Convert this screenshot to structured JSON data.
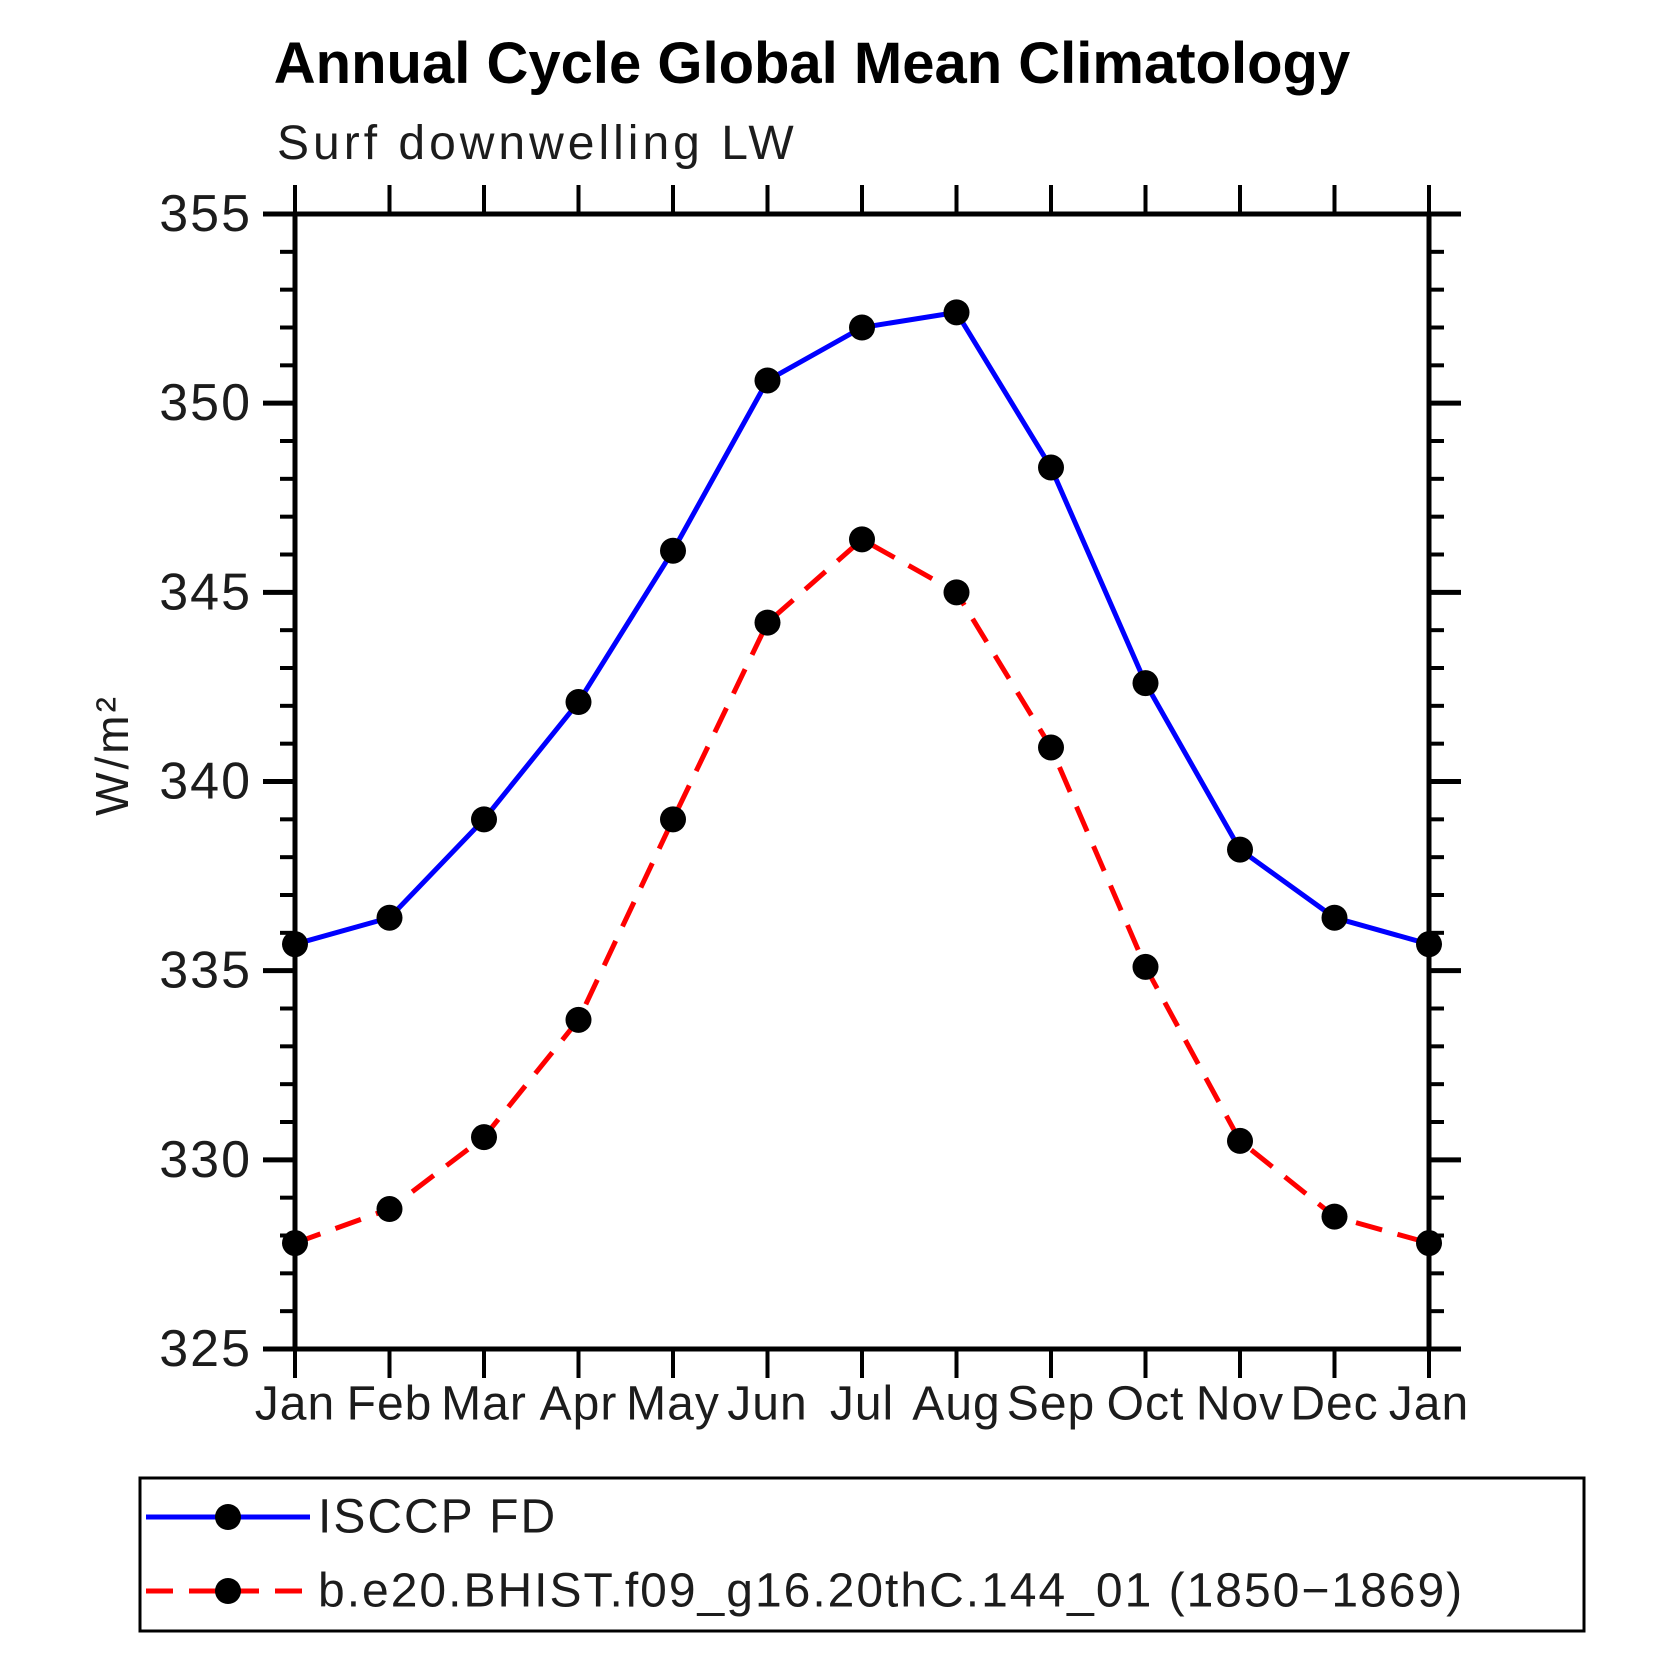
{
  "title": "Annual Cycle Global Mean Climatology",
  "subtitle": "Surf downwelling LW",
  "ylabel": "W/m²",
  "chart_data": {
    "type": "line",
    "x_categories": [
      "Jan",
      "Feb",
      "Mar",
      "Apr",
      "May",
      "Jun",
      "Jul",
      "Aug",
      "Sep",
      "Oct",
      "Nov",
      "Dec",
      "Jan"
    ],
    "ylim": [
      325,
      355
    ],
    "y_major_ticks": [
      325,
      330,
      335,
      340,
      345,
      350,
      355
    ],
    "y_minor_step": 1,
    "grid": false,
    "legend_position": "bottom",
    "marker_color": "#000000",
    "frame_color": "#000000",
    "series": [
      {
        "name": "ISCCP FD",
        "color": "#0000ff",
        "style": "solid",
        "marker": "circle",
        "values": [
          335.7,
          336.4,
          339.0,
          342.1,
          346.1,
          350.6,
          352.0,
          352.4,
          348.3,
          342.6,
          338.2,
          336.4,
          335.7
        ]
      },
      {
        "name": "b.e20.BHIST.f09_g16.20thC.144_01 (1850−1869)",
        "color": "#ff0000",
        "style": "dashed",
        "marker": "circle",
        "values": [
          327.8,
          328.7,
          330.6,
          333.7,
          339.0,
          344.2,
          346.4,
          345.0,
          340.9,
          335.1,
          330.5,
          328.5,
          327.8
        ]
      }
    ]
  }
}
